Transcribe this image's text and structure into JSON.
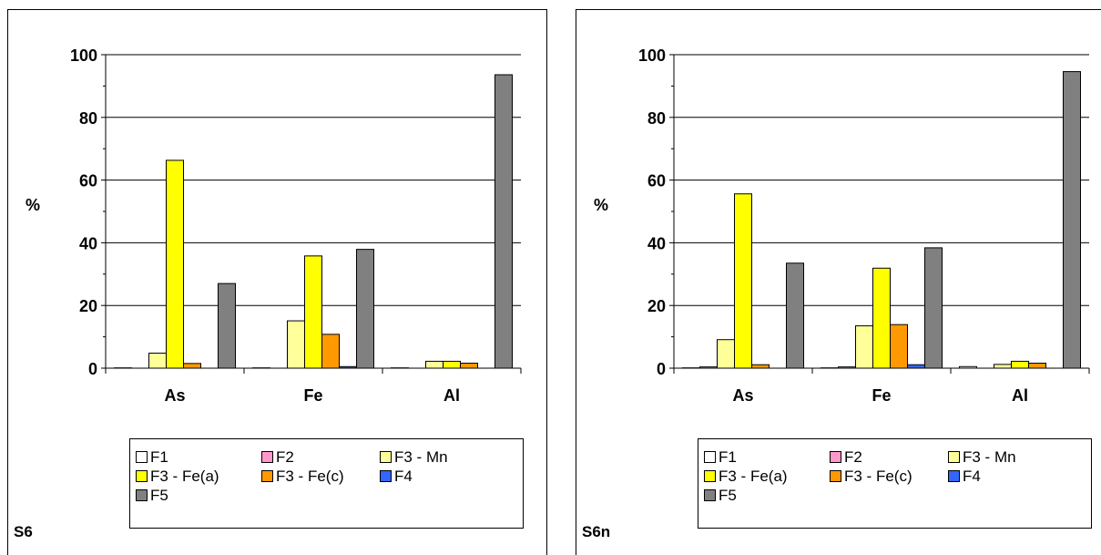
{
  "legend_labels": [
    "F1",
    "F2",
    "F3 - Mn",
    "F3 - Fe(a)",
    "F3 - Fe(c)",
    "F4",
    "F5"
  ],
  "colors": {
    "F1": "#ffffff",
    "F2": "#ff99cc",
    "F3 - Mn": "#ffff99",
    "F3 - Fe(a)": "#ffff00",
    "F3 - Fe(c)": "#ff9900",
    "F4": "#3366ff",
    "F5": "#808080"
  },
  "chart_data": [
    {
      "type": "bar",
      "panel_label": "S6",
      "ylabel": "%",
      "xlabel": "",
      "ylim": [
        0,
        100
      ],
      "yticks": [
        "0",
        "20",
        "40",
        "60",
        "80",
        "100"
      ],
      "grid": true,
      "legend_position": "bottom",
      "categories": [
        "As",
        "Fe",
        "Al"
      ],
      "series": [
        {
          "name": "F1",
          "values": [
            0.1,
            0.1,
            0.1
          ]
        },
        {
          "name": "F2",
          "values": [
            0,
            0,
            0
          ]
        },
        {
          "name": "F3 - Mn",
          "values": [
            4.8,
            15.1,
            2.2
          ]
        },
        {
          "name": "F3 - Fe(a)",
          "values": [
            66.3,
            35.8,
            2.2
          ]
        },
        {
          "name": "F3 - Fe(c)",
          "values": [
            1.5,
            10.8,
            1.6
          ]
        },
        {
          "name": "F4",
          "values": [
            0,
            0.5,
            0
          ]
        },
        {
          "name": "F5",
          "values": [
            27.0,
            37.9,
            93.6
          ]
        }
      ]
    },
    {
      "type": "bar",
      "panel_label": "S6n",
      "ylabel": "%",
      "xlabel": "",
      "ylim": [
        0,
        100
      ],
      "yticks": [
        "0",
        "20",
        "40",
        "60",
        "80",
        "100"
      ],
      "grid": true,
      "legend_position": "bottom",
      "categories": [
        "As",
        "Fe",
        "Al"
      ],
      "series": [
        {
          "name": "F1",
          "values": [
            0.1,
            0.1,
            0.5
          ]
        },
        {
          "name": "F2",
          "values": [
            0.4,
            0.4,
            0
          ]
        },
        {
          "name": "F3 - Mn",
          "values": [
            9.1,
            13.5,
            1.2
          ]
        },
        {
          "name": "F3 - Fe(a)",
          "values": [
            55.6,
            31.9,
            2.2
          ]
        },
        {
          "name": "F3 - Fe(c)",
          "values": [
            1.1,
            13.9,
            1.6
          ]
        },
        {
          "name": "F4",
          "values": [
            0,
            1.1,
            0
          ]
        },
        {
          "name": "F5",
          "values": [
            33.5,
            38.4,
            94.6
          ]
        }
      ]
    }
  ]
}
